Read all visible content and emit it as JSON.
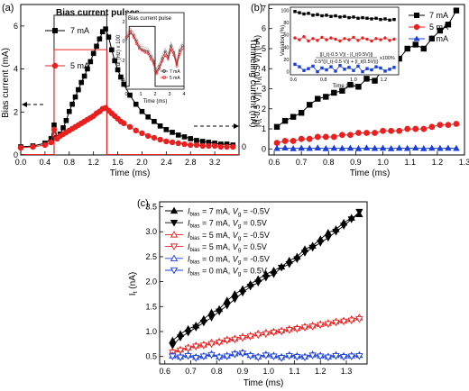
{
  "chart_data": [
    {
      "panel": "(a)",
      "type": "line",
      "title": "Bias current pulses",
      "xlabel": "Time (ms)",
      "ylabel_left": "Bias current (mA)",
      "ylabel_right": "Tunneling current (nA)",
      "xlim": [
        0.0,
        3.6
      ],
      "ylim_left": [
        0,
        7
      ],
      "ylim_right": [
        0,
        1.6
      ],
      "xticks": [
        "0.0",
        "0.4",
        "0.8",
        "1.2",
        "1.6",
        "2.0",
        "2.4",
        "2.8",
        "3.2"
      ],
      "yticks_left": [
        "0",
        "2",
        "4",
        "6"
      ],
      "right_axis_tick": "0",
      "legend": {
        "position": "top-left",
        "entries": [
          "7 mA",
          "5 mA"
        ]
      },
      "colors": {
        "7 mA": "#000000",
        "5 mA": "#e8201f",
        "pulse_7mA": "#333333",
        "pulse_5mA": "#e8201f"
      },
      "pulses": [
        {
          "name": "7 mA",
          "start": 0.55,
          "end": 1.42,
          "level": 6.5
        },
        {
          "name": "5 mA",
          "start": 0.55,
          "end": 1.42,
          "level": 4.9
        }
      ],
      "series": [
        {
          "name": "7 mA",
          "axis": "right",
          "marker": "square",
          "x": [
            0.0,
            0.2,
            0.4,
            0.5,
            0.55,
            0.6,
            0.65,
            0.7,
            0.75,
            0.8,
            0.85,
            0.9,
            0.95,
            1.0,
            1.05,
            1.1,
            1.15,
            1.2,
            1.25,
            1.3,
            1.35,
            1.4,
            1.45,
            1.5,
            1.55,
            1.6,
            1.65,
            1.7,
            1.8,
            1.9,
            2.0,
            2.1,
            2.2,
            2.3,
            2.4,
            2.5,
            2.6,
            2.7,
            2.8,
            2.9,
            3.0,
            3.1,
            3.2,
            3.3,
            3.4,
            3.5
          ],
          "values": [
            0.03,
            0.04,
            0.07,
            0.12,
            0.27,
            0.13,
            0.17,
            0.24,
            0.32,
            0.42,
            0.5,
            0.58,
            0.66,
            0.74,
            0.81,
            0.89,
            0.97,
            1.06,
            1.14,
            1.22,
            1.3,
            1.33,
            1.24,
            1.1,
            0.98,
            0.88,
            0.8,
            0.72,
            0.6,
            0.5,
            0.42,
            0.36,
            0.31,
            0.26,
            0.22,
            0.19,
            0.16,
            0.14,
            0.12,
            0.1,
            0.09,
            0.08,
            0.07,
            0.06,
            0.06,
            0.05
          ]
        },
        {
          "name": "5 mA",
          "axis": "right",
          "marker": "circle",
          "x": [
            0.0,
            0.2,
            0.4,
            0.5,
            0.55,
            0.6,
            0.65,
            0.7,
            0.75,
            0.8,
            0.85,
            0.9,
            0.95,
            1.0,
            1.05,
            1.1,
            1.15,
            1.2,
            1.25,
            1.3,
            1.35,
            1.4,
            1.45,
            1.5,
            1.55,
            1.6,
            1.65,
            1.7,
            1.8,
            1.9,
            2.0,
            2.1,
            2.2,
            2.3,
            2.4,
            2.5,
            2.6,
            2.7,
            2.8,
            2.9,
            3.0,
            3.1,
            3.2,
            3.3,
            3.4,
            3.5
          ],
          "values": [
            0.02,
            0.03,
            0.05,
            0.08,
            0.22,
            0.12,
            0.15,
            0.17,
            0.19,
            0.21,
            0.23,
            0.25,
            0.27,
            0.29,
            0.31,
            0.33,
            0.35,
            0.37,
            0.4,
            0.42,
            0.45,
            0.46,
            0.43,
            0.4,
            0.37,
            0.34,
            0.31,
            0.29,
            0.25,
            0.21,
            0.18,
            0.15,
            0.13,
            0.11,
            0.09,
            0.08,
            0.07,
            0.06,
            0.05,
            0.05,
            0.04,
            0.04,
            0.04,
            0.03,
            0.03,
            0.03
          ]
        }
      ],
      "inset": {
        "title": "Bias current pulse",
        "xlabel": "Time (ms)",
        "ylabel": "df (Hz) x 100",
        "xlim": [
          0,
          4
        ],
        "ylim": [
          -5,
          2
        ],
        "xticks": [
          "0",
          "1",
          "2",
          "3",
          "4"
        ],
        "yticks": [
          "-4",
          "-2",
          "0",
          "2"
        ],
        "legend": [
          "7 mA",
          "5 mA"
        ],
        "pulse": {
          "start": 0.2,
          "end": 2.0,
          "high": 1.5,
          "low": -4.7
        },
        "series": [
          {
            "name": "7 mA",
            "x": [
              0.0,
              0.3,
              0.5,
              0.7,
              0.9,
              1.1,
              1.3,
              1.5,
              1.7,
              1.9,
              2.0,
              2.1,
              2.3,
              2.5,
              2.7,
              2.9,
              3.1,
              3.3,
              3.5,
              3.7,
              3.9
            ],
            "values": [
              0.2,
              0.8,
              0.6,
              0.0,
              -0.6,
              -0.9,
              -1.0,
              -1.1,
              -1.6,
              -2.1,
              -2.9,
              -3.2,
              -2.6,
              -1.8,
              -1.1,
              -1.7,
              -0.5,
              -1.2,
              -2.4,
              -1.0,
              -0.5
            ]
          },
          {
            "name": "5 mA",
            "x": [
              0.0,
              0.3,
              0.5,
              0.7,
              0.9,
              1.1,
              1.3,
              1.5,
              1.7,
              1.9,
              2.0,
              2.1,
              2.3,
              2.5,
              2.7,
              2.9,
              3.1,
              3.3,
              3.5,
              3.7,
              3.9
            ],
            "values": [
              0.4,
              1.0,
              0.4,
              -0.3,
              -0.8,
              -1.0,
              -1.2,
              -1.3,
              -1.9,
              -2.4,
              -3.1,
              -3.4,
              -2.9,
              -2.1,
              -1.5,
              -1.9,
              -0.9,
              -1.5,
              -2.6,
              -1.4,
              -0.8
            ]
          }
        ]
      },
      "annotations": [
        "arrow-left",
        "arrow-right"
      ]
    },
    {
      "panel": "(b)",
      "type": "line",
      "xlabel": "Time (ms)",
      "ylabel": "|I_t(-0.5 V)| - |I_t(0.5 V)| (nA)",
      "ylabel_parts": [
        "|I",
        "t",
        "(-0.5 V)| - |I",
        "t",
        "(0.5 V)| (nA)"
      ],
      "xlim": [
        0.58,
        1.3
      ],
      "ylim": [
        -0.3,
        7.2
      ],
      "xticks": [
        "0.6",
        "0.7",
        "0.8",
        "0.9",
        "1.0",
        "1.1",
        "1.2",
        "1.3"
      ],
      "yticks": [
        "0",
        "1",
        "2",
        "3",
        "4",
        "5",
        "6",
        "7"
      ],
      "legend": {
        "position": "top-right",
        "entries": [
          "7 mA",
          "5 mA",
          "0 mA"
        ]
      },
      "colors": {
        "7 mA": "#000000",
        "5 mA": "#e8201f",
        "0 mA": "#1a3fd6"
      },
      "x": [
        0.61,
        0.64,
        0.67,
        0.7,
        0.73,
        0.76,
        0.79,
        0.82,
        0.85,
        0.88,
        0.91,
        0.94,
        0.97,
        1.0,
        1.03,
        1.06,
        1.09,
        1.12,
        1.15,
        1.18,
        1.21,
        1.24,
        1.27
      ],
      "series": [
        {
          "name": "7 mA",
          "marker": "square",
          "values": [
            1.1,
            1.4,
            1.6,
            1.8,
            2.2,
            2.5,
            2.6,
            2.8,
            2.9,
            3.2,
            3.1,
            3.5,
            3.4,
            4.0,
            4.6,
            4.5,
            5.0,
            5.2,
            5.0,
            5.5,
            5.9,
            6.2,
            6.9
          ]
        },
        {
          "name": "5 mA",
          "marker": "circle",
          "values": [
            0.3,
            0.4,
            0.4,
            0.5,
            0.5,
            0.6,
            0.6,
            0.6,
            0.7,
            0.7,
            0.8,
            0.8,
            0.8,
            0.9,
            0.9,
            0.9,
            1.0,
            1.0,
            1.0,
            1.1,
            1.2,
            1.2,
            1.25
          ]
        },
        {
          "name": "0 mA",
          "marker": "triangle",
          "values": [
            0.03,
            0.05,
            0.02,
            0.04,
            0.03,
            0.05,
            0.02,
            0.04,
            0.03,
            0.04,
            0.02,
            0.05,
            0.03,
            0.04,
            0.02,
            0.04,
            0.03,
            0.05,
            0.02,
            0.04,
            0.03,
            0.04,
            0.03
          ]
        }
      ],
      "inset": {
        "ylabel": "Variation (%)",
        "xlabel": "Time (ms)",
        "xlim": [
          0.58,
          1.3
        ],
        "ylim": [
          -5,
          105
        ],
        "xticks": [
          "0.6",
          "0.8",
          "1.0",
          "1.2"
        ],
        "yticks": [
          "0",
          "20",
          "40",
          "60",
          "80",
          "100"
        ],
        "formula_top": "||I_t(-0.5 V)| - |I_t(0.5V)||",
        "formula_bottom": "0.5*(|I_t(-0.5 V)| + |I_t(0.5V)|)",
        "formula_factor": "x100%",
        "x": [
          0.61,
          0.64,
          0.67,
          0.7,
          0.73,
          0.76,
          0.79,
          0.82,
          0.85,
          0.88,
          0.91,
          0.94,
          0.97,
          1.0,
          1.03,
          1.06,
          1.09,
          1.12,
          1.15,
          1.18,
          1.21,
          1.24,
          1.27
        ],
        "series": [
          {
            "name": "7 mA",
            "values": [
              98,
              96,
              94,
              95,
              92,
              93,
              91,
              92,
              90,
              91,
              89,
              90,
              88,
              89,
              87,
              88,
              87,
              86,
              87,
              85,
              86,
              84,
              85
            ]
          },
          {
            "name": "5 mA",
            "values": [
              55,
              52,
              57,
              50,
              54,
              51,
              56,
              52,
              55,
              53,
              50,
              54,
              52,
              56,
              51,
              55,
              53,
              50,
              54,
              52,
              55,
              51,
              53
            ]
          },
          {
            "name": "0 mA",
            "values": [
              12,
              8,
              2,
              5,
              9,
              0,
              6,
              3,
              8,
              1,
              10,
              4,
              7,
              2,
              9,
              0,
              5,
              3,
              8,
              6,
              1,
              4,
              7
            ]
          }
        ]
      }
    },
    {
      "panel": "(c)",
      "type": "line",
      "xlabel": "Time (ms)",
      "ylabel": "I_t (nA)",
      "xlim": [
        0.58,
        1.38
      ],
      "ylim": [
        0.35,
        3.6
      ],
      "xticks": [
        "0.6",
        "0.7",
        "0.8",
        "0.9",
        "1.0",
        "1.1",
        "1.2",
        "1.3"
      ],
      "yticks": [
        "0.5",
        "1.0",
        "1.5",
        "2.0",
        "2.5",
        "3.0",
        "3.5"
      ],
      "legend": {
        "position": "top-left"
      },
      "x": [
        0.63,
        0.66,
        0.69,
        0.72,
        0.75,
        0.78,
        0.81,
        0.84,
        0.87,
        0.9,
        0.93,
        0.96,
        0.99,
        1.02,
        1.05,
        1.08,
        1.11,
        1.14,
        1.17,
        1.2,
        1.23,
        1.26,
        1.29,
        1.32,
        1.35
      ],
      "series": [
        {
          "name": "I_bias = 7 mA, V_g = -0.5V",
          "label": {
            "bias": "7",
            "vg": "-0.5V"
          },
          "marker": "triangle-up",
          "fill": true,
          "color": "#000000",
          "values": [
            0.82,
            0.95,
            1.05,
            1.12,
            1.25,
            1.38,
            1.45,
            1.62,
            1.75,
            1.85,
            1.95,
            2.05,
            2.15,
            2.22,
            2.3,
            2.42,
            2.5,
            2.65,
            2.72,
            2.85,
            2.98,
            3.05,
            3.18,
            3.28,
            3.35
          ]
        },
        {
          "name": "I_bias = 7 mA, V_g = 0.5V",
          "label": {
            "bias": "7",
            "vg": "0.5V"
          },
          "marker": "triangle-down",
          "fill": true,
          "color": "#000000",
          "values": [
            0.72,
            0.88,
            0.98,
            1.08,
            1.18,
            1.28,
            1.4,
            1.52,
            1.65,
            1.78,
            1.9,
            1.98,
            2.08,
            2.15,
            2.28,
            2.35,
            2.45,
            2.58,
            2.68,
            2.78,
            2.88,
            3.0,
            3.12,
            3.25,
            3.4
          ]
        },
        {
          "name": "I_bias = 5 mA, V_g = -0.5V",
          "label": {
            "bias": "5",
            "vg": "-0.5V"
          },
          "marker": "triangle-up",
          "fill": false,
          "color": "#e8201f",
          "values": [
            0.6,
            0.64,
            0.68,
            0.72,
            0.74,
            0.78,
            0.8,
            0.84,
            0.86,
            0.9,
            0.92,
            0.96,
            0.98,
            1.0,
            1.02,
            1.05,
            1.07,
            1.1,
            1.12,
            1.15,
            1.17,
            1.2,
            1.22,
            1.25,
            1.28
          ]
        },
        {
          "name": "I_bias = 5 mA, V_g = 0.5V",
          "label": {
            "bias": "5",
            "vg": "0.5V"
          },
          "marker": "triangle-down",
          "fill": false,
          "color": "#e8201f",
          "values": [
            0.58,
            0.62,
            0.66,
            0.7,
            0.72,
            0.75,
            0.78,
            0.82,
            0.84,
            0.87,
            0.9,
            0.93,
            0.95,
            0.98,
            1.0,
            1.03,
            1.05,
            1.08,
            1.1,
            1.13,
            1.15,
            1.18,
            1.2,
            1.22,
            1.25
          ]
        },
        {
          "name": "I_bias = 0 mA, V_g = -0.5V",
          "label": {
            "bias": "0",
            "vg": "-0.5V"
          },
          "marker": "triangle-up",
          "fill": false,
          "color": "#1a3fd6",
          "values": [
            0.52,
            0.5,
            0.53,
            0.49,
            0.51,
            0.55,
            0.5,
            0.52,
            0.56,
            0.58,
            0.53,
            0.5,
            0.54,
            0.52,
            0.49,
            0.53,
            0.51,
            0.5,
            0.54,
            0.52,
            0.5,
            0.53,
            0.51,
            0.52,
            0.53
          ]
        },
        {
          "name": "I_bias = 0 mA, V_g = 0.5V",
          "label": {
            "bias": "0",
            "vg": "0.5V"
          },
          "marker": "triangle-down",
          "fill": false,
          "color": "#1a3fd6",
          "values": [
            0.5,
            0.48,
            0.51,
            0.47,
            0.5,
            0.53,
            0.48,
            0.5,
            0.54,
            0.56,
            0.51,
            0.48,
            0.52,
            0.5,
            0.47,
            0.51,
            0.49,
            0.48,
            0.52,
            0.5,
            0.48,
            0.51,
            0.49,
            0.5,
            0.51
          ]
        }
      ]
    }
  ]
}
